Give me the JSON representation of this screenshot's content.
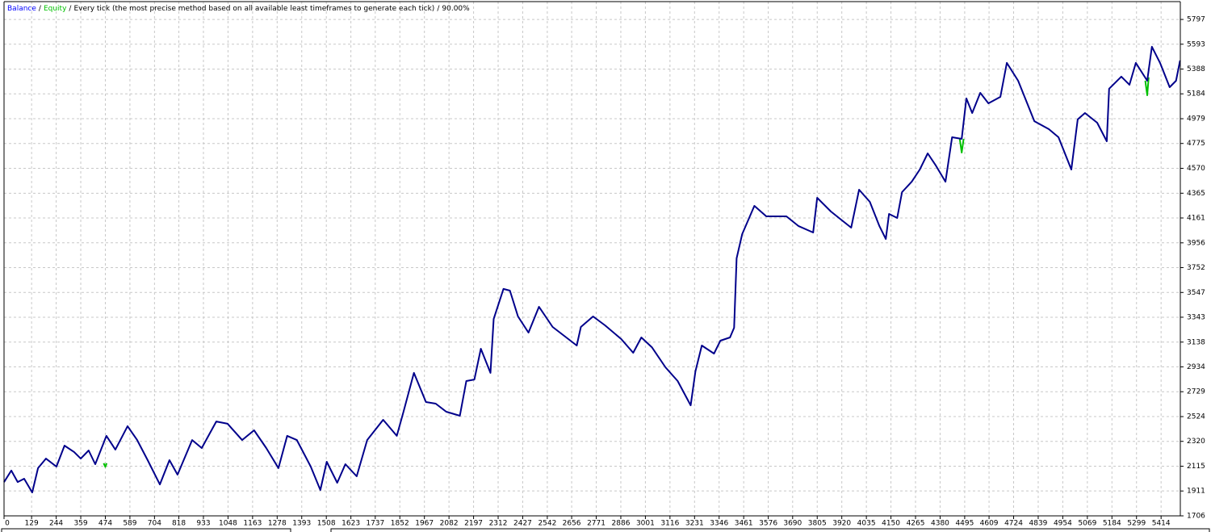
{
  "chart_data": {
    "type": "line",
    "model": "Every tick (the most precise method based on all available least timeframes to generate each tick)",
    "quality": "90.00%",
    "separator": "/",
    "xlim": [
      0,
      5504
    ],
    "ylim": [
      1706,
      5944
    ],
    "grid": true,
    "xticks": [
      0,
      129,
      244,
      359,
      474,
      589,
      704,
      818,
      933,
      1048,
      1163,
      1278,
      1393,
      1508,
      1623,
      1737,
      1852,
      1967,
      2082,
      2197,
      2312,
      2427,
      2542,
      2656,
      2771,
      2886,
      3001,
      3116,
      3231,
      3346,
      3461,
      3576,
      3690,
      3805,
      3920,
      4035,
      4150,
      4265,
      4380,
      4495,
      4609,
      4724,
      4839,
      4954,
      5069,
      5184,
      5299,
      5414
    ],
    "yticks": [
      1706,
      1911,
      2115,
      2320,
      2524,
      2729,
      2934,
      3138,
      3343,
      3547,
      3752,
      3956,
      4161,
      4365,
      4570,
      4775,
      4979,
      5184,
      5388,
      5593,
      5797
    ],
    "series": [
      {
        "name": "Equity",
        "color": "#00c000",
        "x": [
          466,
          474,
          480,
          481,
          4472,
          4481,
          4490,
          4491,
          5340,
          5349,
          5356
        ],
        "values": [
          2140,
          2110,
          2140,
          null,
          4813,
          4700,
          4813,
          null,
          5292,
          5172,
          5320
        ]
      },
      {
        "name": "Balance",
        "color": "#00008b",
        "x": [
          0,
          34,
          64,
          94,
          132,
          159,
          196,
          245,
          283,
          328,
          359,
          396,
          427,
          479,
          521,
          578,
          623,
          672,
          729,
          774,
          812,
          880,
          925,
          993,
          1046,
          1114,
          1170,
          1227,
          1284,
          1325,
          1370,
          1435,
          1480,
          1510,
          1559,
          1597,
          1650,
          1699,
          1774,
          1838,
          1869,
          1918,
          1974,
          2020,
          2069,
          2133,
          2163,
          2201,
          2231,
          2276,
          2291,
          2337,
          2367,
          2405,
          2454,
          2503,
          2567,
          2680,
          2699,
          2756,
          2812,
          2888,
          2944,
          2982,
          3031,
          3095,
          3152,
          3213,
          3235,
          3265,
          3322,
          3352,
          3397,
          3416,
          3428,
          3454,
          3511,
          3567,
          3661,
          3718,
          3786,
          3805,
          3869,
          3907,
          3964,
          4001,
          4051,
          4096,
          4126,
          4141,
          4179,
          4202,
          4247,
          4285,
          4322,
          4360,
          4405,
          4436,
          4481,
          4503,
          4530,
          4568,
          4606,
          4662,
          4692,
          4745,
          4821,
          4889,
          4934,
          4994,
          5024,
          5058,
          5115,
          5160,
          5171,
          5228,
          5266,
          5296,
          5349,
          5371,
          5409,
          5454,
          5484,
          5503
        ],
        "values": [
          1984,
          2079,
          1985,
          2012,
          1899,
          2099,
          2178,
          2112,
          2285,
          2232,
          2178,
          2245,
          2132,
          2365,
          2252,
          2445,
          2331,
          2165,
          1965,
          2165,
          2045,
          2331,
          2265,
          2484,
          2465,
          2331,
          2411,
          2265,
          2099,
          2365,
          2331,
          2112,
          1919,
          2152,
          1979,
          2132,
          2032,
          2331,
          2498,
          2365,
          2564,
          2884,
          2644,
          2631,
          2564,
          2531,
          2817,
          2830,
          3083,
          2884,
          3329,
          3576,
          3562,
          3349,
          3216,
          3429,
          3263,
          3110,
          3263,
          3349,
          3276,
          3163,
          3050,
          3176,
          3096,
          2930,
          2817,
          2617,
          2897,
          3110,
          3043,
          3150,
          3176,
          3256,
          3828,
          4028,
          4261,
          4174,
          4174,
          4094,
          4041,
          4327,
          4214,
          4161,
          4081,
          4394,
          4294,
          4094,
          3988,
          4194,
          4161,
          4374,
          4460,
          4560,
          4693,
          4593,
          4460,
          4826,
          4813,
          5146,
          5026,
          5192,
          5106,
          5159,
          5439,
          5292,
          4959,
          4893,
          4826,
          4560,
          4973,
          5026,
          4946,
          4793,
          5226,
          5326,
          5259,
          5439,
          5292,
          5572,
          5439,
          5239,
          5292,
          5459
        ]
      }
    ]
  }
}
